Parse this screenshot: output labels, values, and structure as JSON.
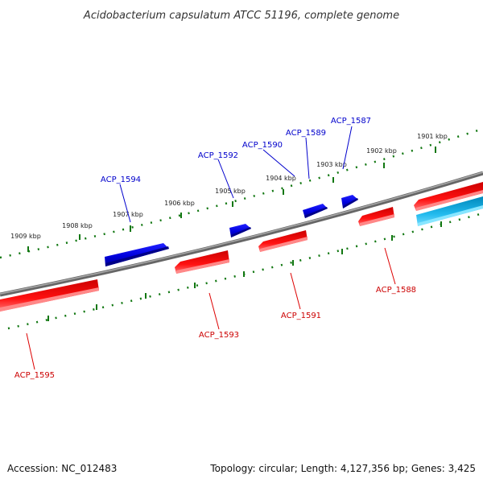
{
  "title": "Acidobacterium capsulatum ATCC 51196, complete genome",
  "footer": {
    "accession": "Accession: NC_012483",
    "summary": "Topology: circular; Length: 4,127,356 bp; Genes: 3,425"
  },
  "colors": {
    "backbone": "#7d7d7d",
    "forward_gene": "#0000dd",
    "reverse_gene": "#ee0000",
    "rna_gene": "#11aadd",
    "tick": "#117711"
  },
  "kbp_labels": [
    {
      "label": "1901 kbp"
    },
    {
      "label": "1902 kbp"
    },
    {
      "label": "1903 kbp"
    },
    {
      "label": "1904 kbp"
    },
    {
      "label": "1905 kbp"
    },
    {
      "label": "1906 kbp"
    },
    {
      "label": "1907 kbp"
    },
    {
      "label": "1908 kbp"
    },
    {
      "label": "1909 kbp"
    }
  ],
  "genes": [
    {
      "name": "ACP_1587",
      "strand": "forward"
    },
    {
      "name": "ACP_1589",
      "strand": "forward"
    },
    {
      "name": "ACP_1590",
      "strand": "forward"
    },
    {
      "name": "ACP_1592",
      "strand": "forward"
    },
    {
      "name": "ACP_1594",
      "strand": "forward"
    },
    {
      "name": "ACP_1588",
      "strand": "reverse"
    },
    {
      "name": "ACP_1591",
      "strand": "reverse"
    },
    {
      "name": "ACP_1593",
      "strand": "reverse"
    },
    {
      "name": "ACP_1595",
      "strand": "reverse"
    }
  ]
}
